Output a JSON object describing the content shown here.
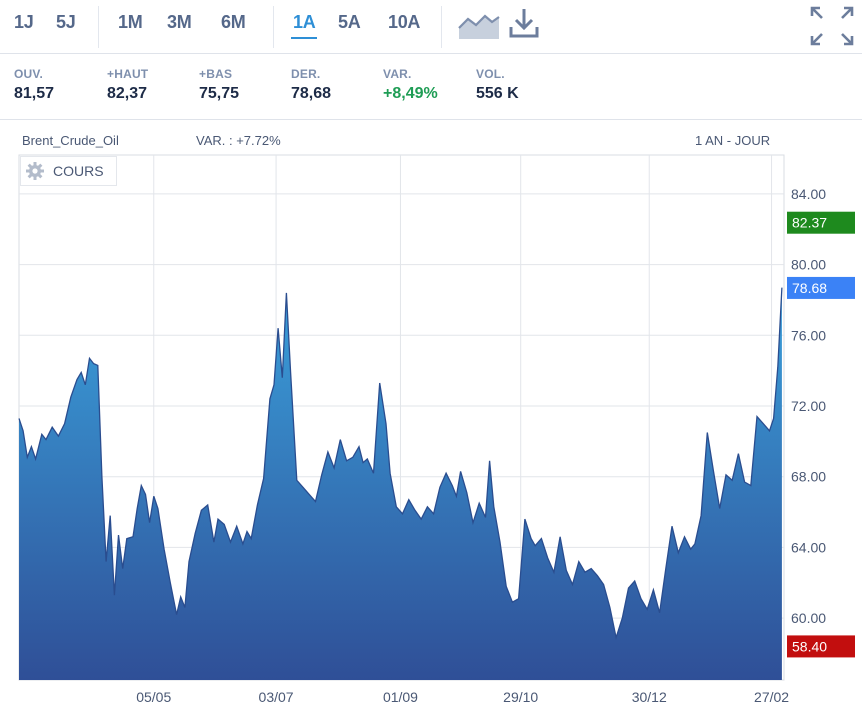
{
  "toolbar": {
    "periods": [
      {
        "label": "1J",
        "active": false
      },
      {
        "label": "5J",
        "active": false
      },
      {
        "label": "1M",
        "active": false
      },
      {
        "label": "3M",
        "active": false
      },
      {
        "label": "6M",
        "active": false
      },
      {
        "label": "1A",
        "active": true
      },
      {
        "label": "5A",
        "active": false
      },
      {
        "label": "10A",
        "active": false
      }
    ],
    "icons": [
      "area-chart-icon",
      "download-icon",
      "fullscreen-icon"
    ]
  },
  "stats": [
    {
      "label": "OUV.",
      "value": "81,57"
    },
    {
      "label": "+HAUT",
      "value": "82,37"
    },
    {
      "label": "+BAS",
      "value": "75,75"
    },
    {
      "label": "DER.",
      "value": "78,68"
    },
    {
      "label": "VAR.",
      "value": "+8,49%"
    },
    {
      "label": "VOL.",
      "value": "556 K"
    }
  ],
  "chart_header": {
    "instrument": "Brent_Crude_Oil",
    "variation": "VAR. : +7.72%",
    "range": "1 AN - JOUR",
    "legend": "COURS"
  },
  "colors": {
    "accent": "#2e8fd6",
    "area_top": "#3aa0db",
    "area_bottom": "#2f4f97",
    "high_badge": "#1e8a1e",
    "last_badge": "#3b82f6",
    "low_badge": "#c20e0e",
    "positive": "#1f9d55"
  },
  "chart_data": {
    "type": "area",
    "title": "Brent_Crude_Oil",
    "ylim": [
      56.5,
      86.2
    ],
    "y_ticks": [
      "84.00",
      "80.00",
      "76.00",
      "72.00",
      "68.00",
      "64.00",
      "60.00"
    ],
    "x_range": [
      "2025-03-01",
      "2026-03-05"
    ],
    "x_ticks": [
      {
        "label": "05/05",
        "date": "2025-05-05"
      },
      {
        "label": "03/07",
        "date": "2025-07-03"
      },
      {
        "label": "01/09",
        "date": "2025-09-01"
      },
      {
        "label": "29/10",
        "date": "2025-10-29"
      },
      {
        "label": "30/12",
        "date": "2025-12-30"
      },
      {
        "label": "27/02",
        "date": "2026-02-27"
      }
    ],
    "grid": true,
    "markers": [
      {
        "label": "82.37",
        "value": 82.37,
        "kind": "high"
      },
      {
        "label": "78.68",
        "value": 78.68,
        "kind": "last"
      },
      {
        "label": "58.40",
        "value": 58.4,
        "kind": "low"
      }
    ],
    "series": [
      {
        "values": [
          [
            "2025-03-01",
            71.3
          ],
          [
            "2025-03-03",
            70.6
          ],
          [
            "2025-03-05",
            69.1
          ],
          [
            "2025-03-07",
            69.7
          ],
          [
            "2025-03-09",
            69.0
          ],
          [
            "2025-03-12",
            70.4
          ],
          [
            "2025-03-14",
            70.1
          ],
          [
            "2025-03-17",
            70.8
          ],
          [
            "2025-03-20",
            70.3
          ],
          [
            "2025-03-23",
            71.0
          ],
          [
            "2025-03-26",
            72.5
          ],
          [
            "2025-03-29",
            73.5
          ],
          [
            "2025-03-31",
            73.9
          ],
          [
            "2025-04-02",
            73.2
          ],
          [
            "2025-04-04",
            74.7
          ],
          [
            "2025-04-06",
            74.4
          ],
          [
            "2025-04-08",
            74.3
          ],
          [
            "2025-04-10",
            68.0
          ],
          [
            "2025-04-12",
            63.2
          ],
          [
            "2025-04-14",
            65.8
          ],
          [
            "2025-04-16",
            61.3
          ],
          [
            "2025-04-18",
            64.7
          ],
          [
            "2025-04-20",
            62.8
          ],
          [
            "2025-04-22",
            64.5
          ],
          [
            "2025-04-25",
            64.6
          ],
          [
            "2025-04-27",
            66.2
          ],
          [
            "2025-04-29",
            67.5
          ],
          [
            "2025-05-01",
            67.0
          ],
          [
            "2025-05-03",
            65.4
          ],
          [
            "2025-05-05",
            66.9
          ],
          [
            "2025-05-07",
            66.2
          ],
          [
            "2025-05-10",
            63.9
          ],
          [
            "2025-05-13",
            62.0
          ],
          [
            "2025-05-16",
            60.2
          ],
          [
            "2025-05-18",
            61.2
          ],
          [
            "2025-05-20",
            60.6
          ],
          [
            "2025-05-22",
            63.2
          ],
          [
            "2025-05-25",
            64.8
          ],
          [
            "2025-05-28",
            66.1
          ],
          [
            "2025-05-31",
            66.4
          ],
          [
            "2025-06-03",
            64.3
          ],
          [
            "2025-06-05",
            65.6
          ],
          [
            "2025-06-08",
            65.3
          ],
          [
            "2025-06-11",
            64.3
          ],
          [
            "2025-06-14",
            65.2
          ],
          [
            "2025-06-17",
            64.2
          ],
          [
            "2025-06-19",
            64.9
          ],
          [
            "2025-06-21",
            64.5
          ],
          [
            "2025-06-24",
            66.4
          ],
          [
            "2025-06-27",
            67.9
          ],
          [
            "2025-06-30",
            72.4
          ],
          [
            "2025-07-02",
            73.2
          ],
          [
            "2025-07-04",
            76.4
          ],
          [
            "2025-07-06",
            73.6
          ],
          [
            "2025-07-08",
            78.4
          ],
          [
            "2025-07-10",
            73.9
          ],
          [
            "2025-07-13",
            67.8
          ],
          [
            "2025-07-16",
            67.4
          ],
          [
            "2025-07-19",
            67.0
          ],
          [
            "2025-07-22",
            66.6
          ],
          [
            "2025-07-25",
            68.1
          ],
          [
            "2025-07-28",
            69.4
          ],
          [
            "2025-07-31",
            68.5
          ],
          [
            "2025-08-03",
            70.1
          ],
          [
            "2025-08-06",
            68.9
          ],
          [
            "2025-08-09",
            69.1
          ],
          [
            "2025-08-12",
            69.7
          ],
          [
            "2025-08-14",
            68.8
          ],
          [
            "2025-08-16",
            69.0
          ],
          [
            "2025-08-19",
            68.2
          ],
          [
            "2025-08-22",
            73.3
          ],
          [
            "2025-08-25",
            71.0
          ],
          [
            "2025-08-27",
            68.2
          ],
          [
            "2025-08-30",
            66.3
          ],
          [
            "2025-09-02",
            65.9
          ],
          [
            "2025-09-05",
            66.7
          ],
          [
            "2025-09-08",
            66.1
          ],
          [
            "2025-09-11",
            65.6
          ],
          [
            "2025-09-14",
            66.3
          ],
          [
            "2025-09-17",
            65.9
          ],
          [
            "2025-09-20",
            67.4
          ],
          [
            "2025-09-23",
            68.2
          ],
          [
            "2025-09-26",
            67.5
          ],
          [
            "2025-09-28",
            66.9
          ],
          [
            "2025-09-30",
            68.3
          ],
          [
            "2025-10-03",
            67.1
          ],
          [
            "2025-10-06",
            65.4
          ],
          [
            "2025-10-09",
            66.5
          ],
          [
            "2025-10-12",
            65.7
          ],
          [
            "2025-10-14",
            68.9
          ],
          [
            "2025-10-16",
            66.3
          ],
          [
            "2025-10-19",
            64.3
          ],
          [
            "2025-10-22",
            61.8
          ],
          [
            "2025-10-25",
            60.9
          ],
          [
            "2025-10-28",
            61.1
          ],
          [
            "2025-10-31",
            65.6
          ],
          [
            "2025-11-03",
            64.5
          ],
          [
            "2025-11-05",
            64.1
          ],
          [
            "2025-11-08",
            64.5
          ],
          [
            "2025-11-11",
            63.4
          ],
          [
            "2025-11-14",
            62.6
          ],
          [
            "2025-11-17",
            64.6
          ],
          [
            "2025-11-20",
            62.7
          ],
          [
            "2025-11-23",
            61.9
          ],
          [
            "2025-11-26",
            63.2
          ],
          [
            "2025-11-29",
            62.6
          ],
          [
            "2025-12-02",
            62.8
          ],
          [
            "2025-12-05",
            62.4
          ],
          [
            "2025-12-08",
            61.9
          ],
          [
            "2025-12-11",
            60.6
          ],
          [
            "2025-12-14",
            58.9
          ],
          [
            "2025-12-17",
            60.0
          ],
          [
            "2025-12-20",
            61.7
          ],
          [
            "2025-12-23",
            62.1
          ],
          [
            "2025-12-26",
            61.1
          ],
          [
            "2025-12-29",
            60.5
          ],
          [
            "2026-01-01",
            61.6
          ],
          [
            "2026-01-04",
            60.3
          ],
          [
            "2026-01-07",
            62.8
          ],
          [
            "2026-01-10",
            65.2
          ],
          [
            "2026-01-13",
            63.7
          ],
          [
            "2026-01-16",
            64.6
          ],
          [
            "2026-01-19",
            63.9
          ],
          [
            "2026-01-21",
            64.2
          ],
          [
            "2026-01-24",
            65.8
          ],
          [
            "2026-01-27",
            70.5
          ],
          [
            "2026-01-30",
            68.3
          ],
          [
            "2026-02-02",
            66.2
          ],
          [
            "2026-02-05",
            68.1
          ],
          [
            "2026-02-08",
            67.8
          ],
          [
            "2026-02-11",
            69.3
          ],
          [
            "2026-02-14",
            67.7
          ],
          [
            "2026-02-17",
            67.5
          ],
          [
            "2026-02-20",
            71.4
          ],
          [
            "2026-02-23",
            71.0
          ],
          [
            "2026-02-26",
            70.6
          ],
          [
            "2026-02-28",
            71.3
          ],
          [
            "2026-03-02",
            74.2
          ],
          [
            "2026-03-04",
            78.7
          ]
        ]
      }
    ]
  }
}
